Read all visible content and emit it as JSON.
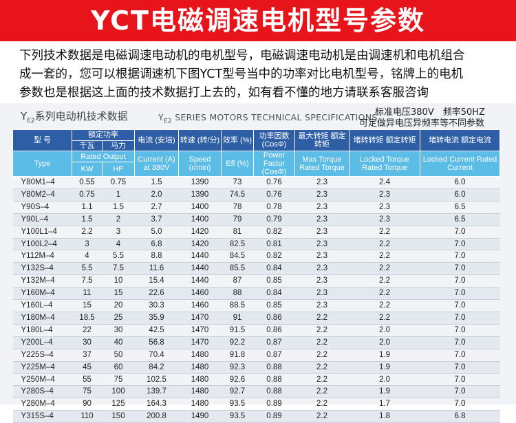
{
  "banner_title": "YCT电磁调速电机型号参数",
  "intro": [
    "下列技术数据是电磁调速电动机的电机型号，电磁调速电动机是由调速机和电机组合",
    "成一套的，您可以根据调速机下图YCT型号当中的功率对比电机型号，铭牌上的电机",
    "参数也是根据这上面的技术数据打上去的，如有看不懂的地方请联系客服咨询"
  ],
  "sheet": {
    "title_cn_y": "Y",
    "title_cn_sub": "E2",
    "title_cn_rest": "系列电动机技术数据",
    "title_en_y": "Y",
    "title_en_sub": "E2",
    "title_en_rest": " SERIES MOTORS TECHNICAL SPECIFICATIONS",
    "standard_line1": "标准电压380V　频率50HZ",
    "standard_line2": "可定做异电压异频率等不同参数"
  },
  "headers": {
    "type_cn": "型 号",
    "type_en": "Type",
    "rated_output_cn": "额定功率",
    "kw_cn": "千瓦",
    "hp_cn": "马力",
    "rated_output_en": "Rated Output",
    "kw_en": "KW",
    "hp_en": "HP",
    "current_cn": "电流 (安培)",
    "current_en": "Current (A) at 380V",
    "speed_cn": "转速 (转/分)",
    "speed_en": "Speed (r/min)",
    "eff_cn": "效率 (%)",
    "eff_en": "Eff (%)",
    "pf_cn": "功率因数 (CosΦ)",
    "pf_en": "Power Factor (CosΦ)",
    "max_cn": "最大转矩 额定转矩",
    "max_en": "Max Torque Rated Torque",
    "locked_torque_cn": "堵转转矩 额定转矩",
    "locked_torque_en": "Locked Torque Rated Torque",
    "locked_current_cn": "堵转电流 额定电流",
    "locked_current_en": "Locked Current Rated Current"
  },
  "rows": [
    [
      "Y80M1–4",
      "0.55",
      "0.75",
      "1.5",
      "1390",
      "73",
      "0.76",
      "2.3",
      "2.4",
      "6.0"
    ],
    [
      "Y80M2–4",
      "0.75",
      "1",
      "2.0",
      "1390",
      "74.5",
      "0.76",
      "2.3",
      "2.3",
      "6.0"
    ],
    [
      "Y90S–4",
      "1.1",
      "1.5",
      "2.7",
      "1400",
      "78",
      "0.78",
      "2.3",
      "2.3",
      "6.5"
    ],
    [
      "Y90L–4",
      "1.5",
      "2",
      "3.7",
      "1400",
      "79",
      "0.79",
      "2.3",
      "2.3",
      "6.5"
    ],
    [
      "Y100L1–4",
      "2.2",
      "3",
      "5.0",
      "1420",
      "81",
      "0.82",
      "2.3",
      "2.2",
      "7.0"
    ],
    [
      "Y100L2–4",
      "3",
      "4",
      "6.8",
      "1420",
      "82.5",
      "0.81",
      "2.3",
      "2.2",
      "7.0"
    ],
    [
      "Y112M–4",
      "4",
      "5.5",
      "8.8",
      "1440",
      "84.5",
      "0.82",
      "2.3",
      "2.2",
      "7.0"
    ],
    [
      "Y132S–4",
      "5.5",
      "7.5",
      "11.6",
      "1440",
      "85.5",
      "0.84",
      "2.3",
      "2.2",
      "7.0"
    ],
    [
      "Y132M–4",
      "7.5",
      "10",
      "15.4",
      "1440",
      "87",
      "0.85",
      "2.3",
      "2.2",
      "7.0"
    ],
    [
      "Y160M–4",
      "11",
      "15",
      "22.6",
      "1460",
      "88",
      "0.84",
      "2.3",
      "2.2",
      "7.0"
    ],
    [
      "Y160L–4",
      "15",
      "20",
      "30.3",
      "1460",
      "88.5",
      "0.85",
      "2.3",
      "2.2",
      "7.0"
    ],
    [
      "Y180M–4",
      "18.5",
      "25",
      "35.9",
      "1470",
      "91",
      "0.86",
      "2.2",
      "2.2",
      "7.0"
    ],
    [
      "Y180L–4",
      "22",
      "30",
      "42.5",
      "1470",
      "91.5",
      "0.86",
      "2.2",
      "2.0",
      "7.0"
    ],
    [
      "Y200L–4",
      "30",
      "40",
      "56.8",
      "1470",
      "92.2",
      "0.87",
      "2.2",
      "2.0",
      "7.0"
    ],
    [
      "Y225S–4",
      "37",
      "50",
      "70.4",
      "1480",
      "91.8",
      "0.87",
      "2.2",
      "1.9",
      "7.0"
    ],
    [
      "Y225M–4",
      "45",
      "60",
      "84.2",
      "1480",
      "92.3",
      "0.88",
      "2.2",
      "1.9",
      "7.0"
    ],
    [
      "Y250M–4",
      "55",
      "75",
      "102.5",
      "1480",
      "92.6",
      "0.88",
      "2.2",
      "2.0",
      "7.0"
    ],
    [
      "Y280S–4",
      "75",
      "100",
      "139.7",
      "1480",
      "92.7",
      "0.88",
      "2.2",
      "1.9",
      "7.0"
    ],
    [
      "Y280M–4",
      "90",
      "125",
      "164.3",
      "1480",
      "93.5",
      "0.89",
      "2.2",
      "1.7",
      "7.0"
    ],
    [
      "Y315S–4",
      "110",
      "150",
      "200.8",
      "1490",
      "93.5",
      "0.89",
      "2.2",
      "1.8",
      "6.8"
    ]
  ]
}
